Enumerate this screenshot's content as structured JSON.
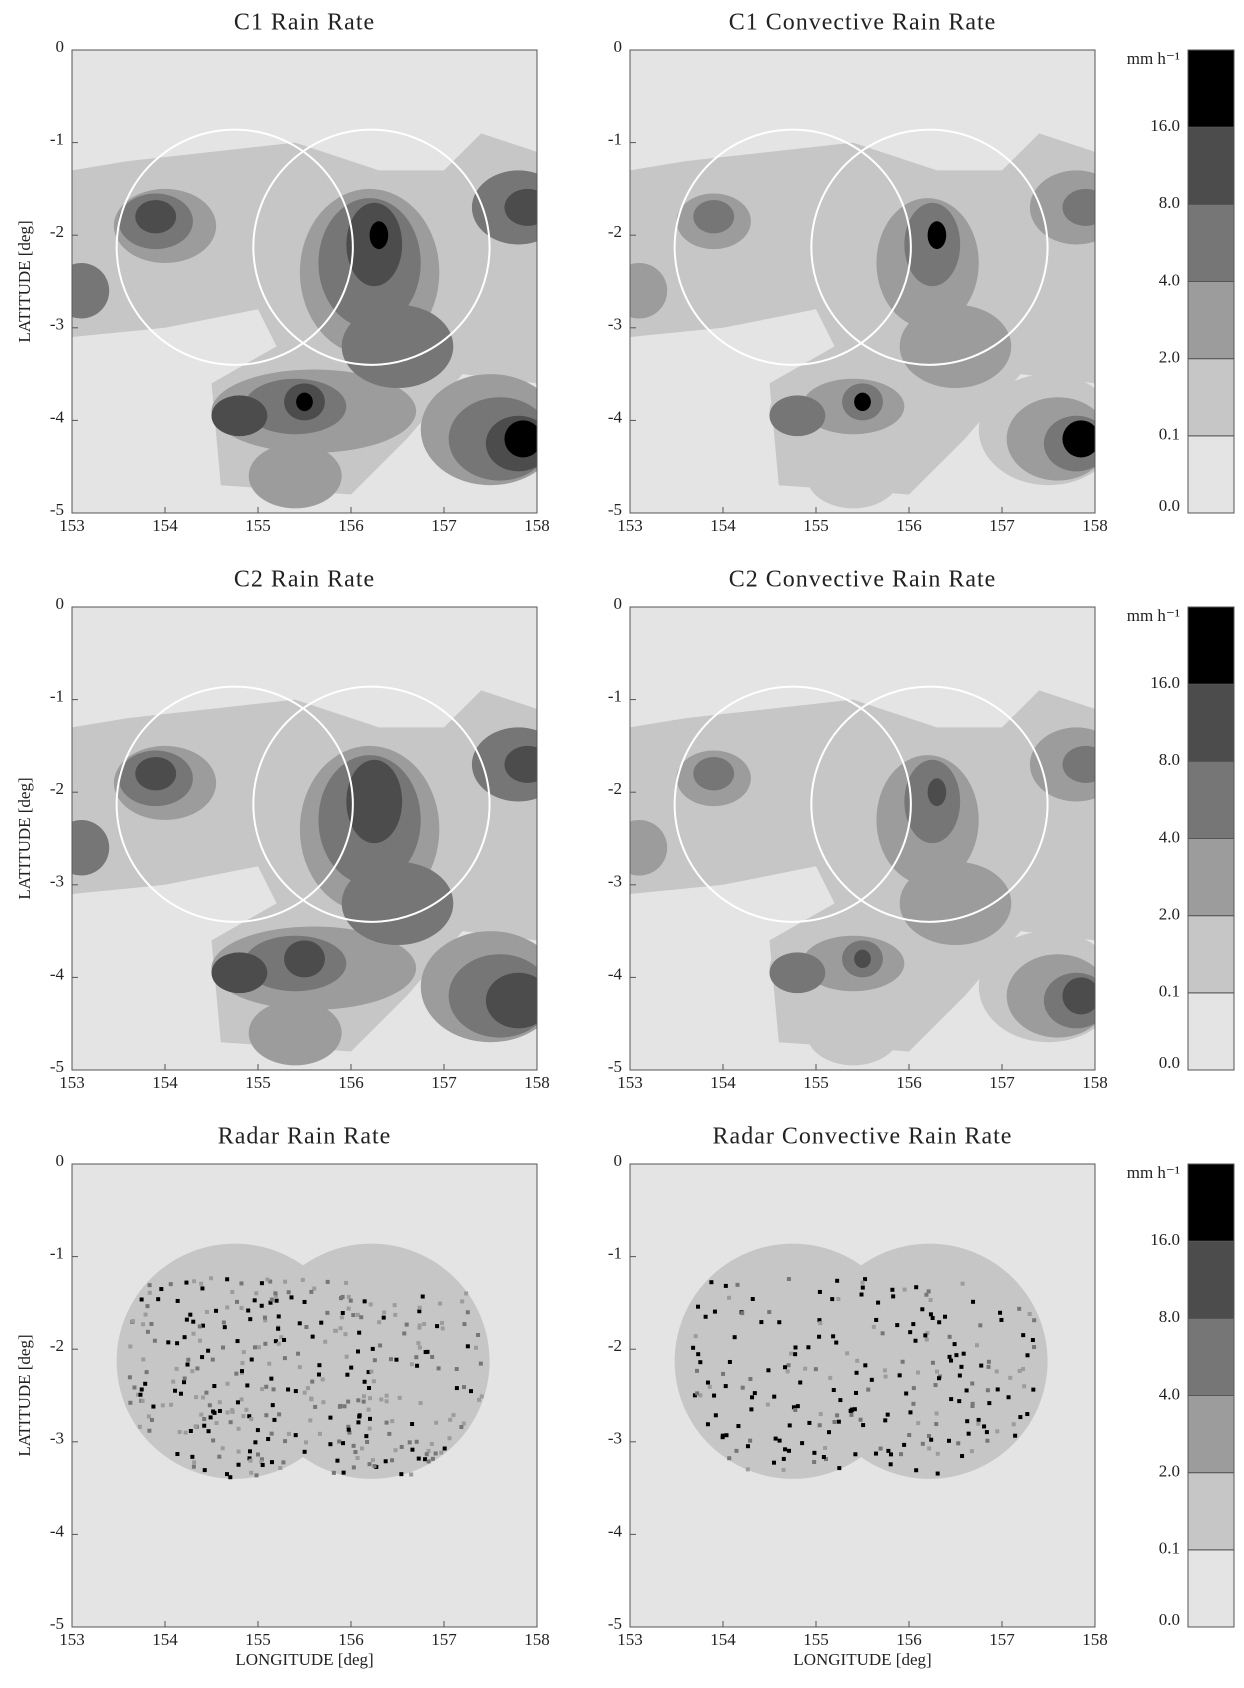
{
  "chart_data": [
    {
      "type": "contour",
      "title": "C1 Rain Rate",
      "ylabel": "LATITUDE [deg]",
      "xlim": [
        153,
        158
      ],
      "ylim": [
        -5,
        0
      ],
      "xticks": [
        153,
        154,
        155,
        156,
        157,
        158
      ],
      "yticks": [
        0,
        -1,
        -2,
        -3,
        -4,
        -5
      ]
    },
    {
      "type": "contour",
      "title": "C1 Convective Rain Rate",
      "xlim": [
        153,
        158
      ],
      "ylim": [
        -5,
        0
      ],
      "xticks": [
        153,
        154,
        155,
        156,
        157,
        158
      ],
      "yticks": [
        0,
        -1,
        -2,
        -3,
        -4,
        -5
      ],
      "colorbar": {
        "unit": "mm h⁻¹",
        "ticks": [
          {
            "value": 0,
            "label": "0.0"
          },
          0.1,
          {
            "value": 2,
            "label": "2.0"
          },
          {
            "value": 4,
            "label": "4.0"
          },
          {
            "value": 8,
            "label": "8.0"
          },
          {
            "value": 16,
            "label": "16.0"
          }
        ],
        "colors": [
          "#e4e4e4",
          "#c6c6c6",
          "#9c9c9c",
          "#767676",
          "#4c4c4c",
          "#000000"
        ]
      }
    },
    {
      "type": "contour",
      "title": "C2 Rain Rate",
      "ylabel": "LATITUDE [deg]",
      "xlim": [
        153,
        158
      ],
      "ylim": [
        -5,
        0
      ],
      "xticks": [
        153,
        154,
        155,
        156,
        157,
        158
      ],
      "yticks": [
        0,
        -1,
        -2,
        -3,
        -4,
        -5
      ]
    },
    {
      "type": "contour",
      "title": "C2 Convective Rain Rate",
      "xlim": [
        153,
        158
      ],
      "ylim": [
        -5,
        0
      ],
      "xticks": [
        153,
        154,
        155,
        156,
        157,
        158
      ],
      "yticks": [
        0,
        -1,
        -2,
        -3,
        -4,
        -5
      ],
      "colorbar": {
        "unit": "mm h⁻¹",
        "ticks": [
          {
            "value": 0,
            "label": "0.0"
          },
          0.1,
          {
            "value": 2,
            "label": "2.0"
          },
          {
            "value": 4,
            "label": "4.0"
          },
          {
            "value": 8,
            "label": "8.0"
          },
          {
            "value": 16,
            "label": "16.0"
          }
        ],
        "colors": [
          "#e4e4e4",
          "#c6c6c6",
          "#9c9c9c",
          "#767676",
          "#4c4c4c",
          "#000000"
        ]
      }
    },
    {
      "type": "radar",
      "title": "Radar Rain Rate",
      "ylabel": "LATITUDE [deg]",
      "xlabel": "LONGITUDE [deg]",
      "xlim": [
        153,
        158
      ],
      "ylim": [
        -5,
        0
      ],
      "xticks": [
        153,
        154,
        155,
        156,
        157,
        158
      ],
      "yticks": [
        0,
        -1,
        -2,
        -3,
        -4,
        -5
      ]
    },
    {
      "type": "radar",
      "title": "Radar Convective Rain Rate",
      "xlabel": "LONGITUDE [deg]",
      "xlim": [
        153,
        158
      ],
      "ylim": [
        -5,
        0
      ],
      "xticks": [
        153,
        154,
        155,
        156,
        157,
        158
      ],
      "yticks": [
        0,
        -1,
        -2,
        -3,
        -4,
        -5
      ],
      "colorbar": {
        "unit": "mm h⁻¹",
        "ticks": [
          {
            "value": 0,
            "label": "0.0"
          },
          0.1,
          {
            "value": 2,
            "label": "2.0"
          },
          {
            "value": 4,
            "label": "4.0"
          },
          {
            "value": 8,
            "label": "8.0"
          },
          {
            "value": 16,
            "label": "16.0"
          }
        ],
        "colors": [
          "#e4e4e4",
          "#c6c6c6",
          "#9c9c9c",
          "#767676",
          "#4c4c4c",
          "#000000"
        ]
      }
    }
  ]
}
